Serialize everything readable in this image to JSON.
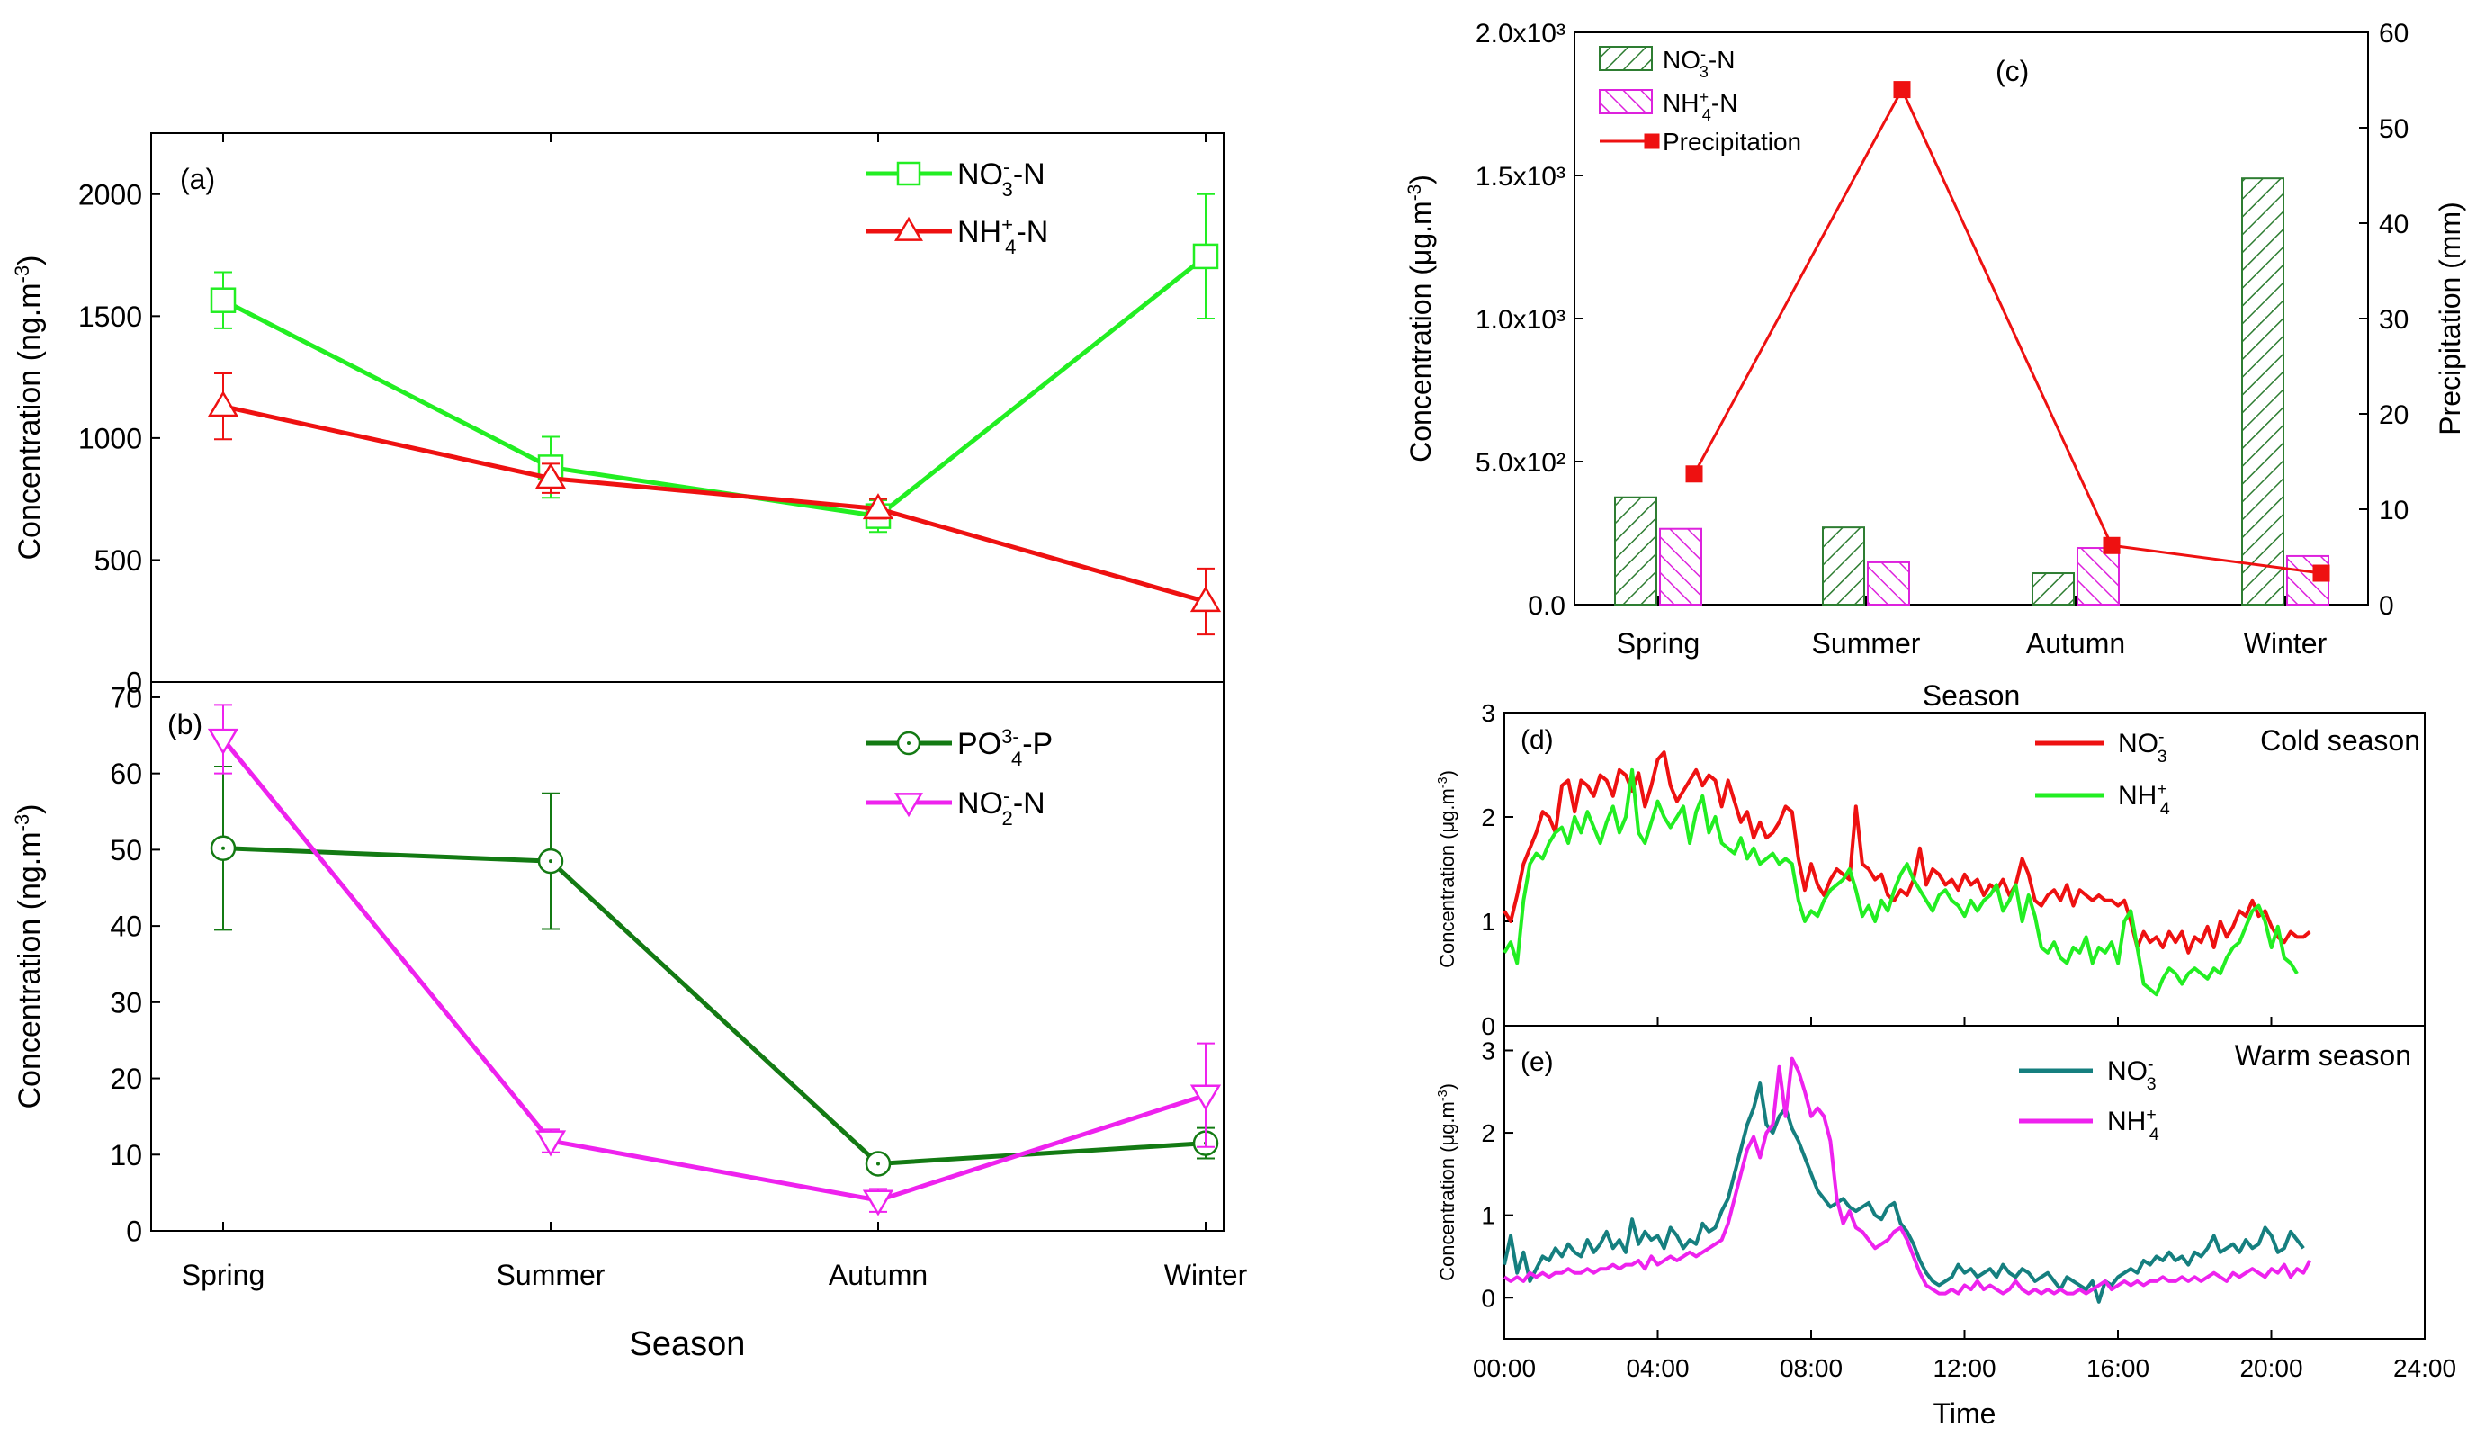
{
  "colors": {
    "no3": "#22ee22",
    "nh4": "#ee1111",
    "po4": "#137a13",
    "no2": "#ee22ee",
    "bar_no3": "#2e7d32",
    "bar_nh4": "#dd22dd",
    "precip": "#ee1111",
    "teal": "#157f7f"
  },
  "chart_data": [
    {
      "id": "a",
      "type": "line",
      "panel_label": "(a)",
      "ylabel": "Concentration (ng.m⁻³)",
      "ylim": [
        0,
        2250
      ],
      "yticks": [
        0,
        500,
        1000,
        1500,
        2000
      ],
      "categories": [
        "Spring",
        "Summer",
        "Autumn",
        "Winter"
      ],
      "series": [
        {
          "name": "NO₃⁻-N",
          "marker": "square",
          "color_key": "no3",
          "values": [
            1565,
            880,
            680,
            1745
          ],
          "err": [
            115,
            125,
            65,
            255
          ]
        },
        {
          "name": "NH₄⁺-N",
          "marker": "triangle-up",
          "color_key": "nh4",
          "values": [
            1130,
            835,
            710,
            330
          ],
          "err": [
            135,
            60,
            40,
            135
          ]
        }
      ],
      "legend": "top-right"
    },
    {
      "id": "b",
      "type": "line",
      "panel_label": "(b)",
      "ylabel": "Concentration (ng.m⁻³)",
      "xlabel": "Season",
      "ylim": [
        0,
        72
      ],
      "yticks": [
        0,
        10,
        20,
        30,
        40,
        50,
        60,
        70
      ],
      "categories": [
        "Spring",
        "Summer",
        "Autumn",
        "Winter"
      ],
      "series": [
        {
          "name": "PO₄³⁻-P",
          "marker": "circle-dot",
          "color_key": "po4",
          "values": [
            50.2,
            48.5,
            8.8,
            11.5
          ],
          "err": [
            10.7,
            8.9,
            1.0,
            2.0
          ]
        },
        {
          "name": "NO₂⁻-N",
          "marker": "triangle-down",
          "color_key": "no2",
          "values": [
            64.5,
            11.8,
            4.0,
            17.8
          ],
          "err": [
            4.5,
            1.5,
            1.5,
            6.8
          ]
        }
      ],
      "legend": "top-right"
    },
    {
      "id": "c",
      "type": "bar",
      "panel_label": "(c)",
      "ylabel": "Concentration (μg.m⁻³)",
      "y2label": "Precipitation (mm)",
      "xlabel": "Season",
      "ylim": [
        0,
        2000
      ],
      "yticks": [
        0,
        500,
        1000,
        1500,
        2000
      ],
      "ytick_labels": [
        "0.0",
        "5.0x10²",
        "1.0x10³",
        "1.5x10³",
        "2.0x10³"
      ],
      "y2lim": [
        0,
        60
      ],
      "y2ticks": [
        0,
        10,
        20,
        30,
        40,
        50,
        60
      ],
      "categories": [
        "Spring",
        "Summer",
        "Autumn",
        "Winter"
      ],
      "series": [
        {
          "name": "NO₃⁻-N",
          "kind": "bar",
          "color_key": "bar_no3",
          "values": [
            375,
            270,
            110,
            1490
          ]
        },
        {
          "name": "NH₄⁺-N",
          "kind": "bar",
          "color_key": "bar_nh4",
          "values": [
            265,
            148,
            198,
            170
          ]
        },
        {
          "name": "Precipitation",
          "kind": "line",
          "axis": "right",
          "marker": "square",
          "color_key": "precip",
          "values": [
            13.7,
            54,
            6.2,
            3.3
          ]
        }
      ],
      "legend": "top-left"
    },
    {
      "id": "d",
      "type": "line",
      "panel_label": "(d)",
      "title": "Cold season",
      "ylabel": "Concentration (μg.m⁻³)",
      "ylim": [
        0,
        3
      ],
      "yticks": [
        0,
        1,
        2,
        3
      ],
      "xlim": [
        0,
        24
      ],
      "series": [
        {
          "name": "NO₃⁻",
          "color_key": "nh4",
          "x_step": 0.1667,
          "values": [
            1.1,
            1.0,
            1.25,
            1.55,
            1.7,
            1.85,
            2.05,
            2.0,
            1.85,
            2.3,
            2.35,
            2.05,
            2.35,
            2.3,
            2.2,
            2.4,
            2.35,
            2.2,
            2.45,
            2.4,
            2.25,
            2.42,
            2.1,
            2.3,
            2.55,
            2.62,
            2.3,
            2.15,
            2.25,
            2.35,
            2.45,
            2.3,
            2.4,
            2.35,
            2.1,
            2.35,
            2.15,
            1.95,
            2.05,
            1.8,
            1.95,
            1.8,
            1.85,
            1.95,
            2.1,
            2.05,
            1.6,
            1.3,
            1.55,
            1.35,
            1.25,
            1.4,
            1.5,
            1.45,
            1.4,
            2.1,
            1.55,
            1.5,
            1.4,
            1.45,
            1.25,
            1.2,
            1.3,
            1.25,
            1.4,
            1.7,
            1.35,
            1.5,
            1.45,
            1.35,
            1.4,
            1.3,
            1.45,
            1.35,
            1.4,
            1.25,
            1.35,
            1.3,
            1.4,
            1.25,
            1.35,
            1.6,
            1.45,
            1.2,
            1.15,
            1.25,
            1.3,
            1.2,
            1.35,
            1.15,
            1.3,
            1.25,
            1.2,
            1.25,
            1.2,
            1.2,
            1.15,
            1.2,
            1.0,
            0.75,
            0.9,
            0.8,
            0.85,
            0.75,
            0.9,
            0.8,
            0.9,
            0.7,
            0.85,
            0.8,
            0.95,
            0.75,
            1.0,
            0.85,
            0.95,
            1.1,
            1.05,
            1.2,
            1.05,
            1.1,
            0.95,
            0.85,
            0.8,
            0.9,
            0.85,
            0.85,
            0.9
          ]
        },
        {
          "name": "NH₄⁺",
          "color_key": "no3",
          "x_step": 0.1667,
          "values": [
            0.7,
            0.8,
            0.6,
            1.2,
            1.55,
            1.65,
            1.6,
            1.75,
            1.85,
            1.9,
            1.75,
            2.0,
            1.85,
            2.05,
            1.9,
            1.75,
            1.95,
            2.1,
            1.85,
            2.0,
            2.45,
            1.85,
            1.75,
            1.95,
            2.15,
            2.0,
            1.9,
            2.0,
            2.1,
            1.75,
            2.05,
            2.2,
            1.85,
            2.0,
            1.75,
            1.7,
            1.65,
            1.8,
            1.6,
            1.7,
            1.55,
            1.6,
            1.65,
            1.55,
            1.6,
            1.55,
            1.2,
            1.0,
            1.1,
            1.05,
            1.2,
            1.3,
            1.35,
            1.4,
            1.5,
            1.3,
            1.05,
            1.15,
            1.0,
            1.2,
            1.1,
            1.3,
            1.45,
            1.55,
            1.4,
            1.3,
            1.2,
            1.1,
            1.25,
            1.3,
            1.2,
            1.15,
            1.05,
            1.2,
            1.1,
            1.2,
            1.25,
            1.35,
            1.1,
            1.2,
            1.35,
            1.0,
            1.25,
            1.05,
            0.75,
            0.7,
            0.8,
            0.65,
            0.6,
            0.75,
            0.7,
            0.85,
            0.6,
            0.75,
            0.7,
            0.8,
            0.6,
            1.0,
            1.1,
            0.75,
            0.4,
            0.35,
            0.3,
            0.45,
            0.55,
            0.5,
            0.4,
            0.5,
            0.55,
            0.5,
            0.45,
            0.55,
            0.5,
            0.65,
            0.75,
            0.8,
            0.95,
            1.1,
            1.15,
            1.0,
            0.75,
            0.95,
            0.65,
            0.6,
            0.5
          ]
        }
      ],
      "legend": "top-right"
    },
    {
      "id": "e",
      "type": "line",
      "panel_label": "(e)",
      "title": "Warm season",
      "ylabel": "Concentration (μg.m⁻³)",
      "xlabel": "Time",
      "ylim": [
        -0.5,
        3.3
      ],
      "yticks": [
        0,
        1,
        2,
        3
      ],
      "xlim": [
        0,
        24
      ],
      "xtick_labels": [
        "00:00",
        "04:00",
        "08:00",
        "12:00",
        "16:00",
        "20:00",
        "24:00"
      ],
      "series": [
        {
          "name": "NO₃⁻",
          "color_key": "teal",
          "x_step": 0.1667,
          "values": [
            0.4,
            0.75,
            0.3,
            0.55,
            0.2,
            0.35,
            0.5,
            0.45,
            0.6,
            0.5,
            0.65,
            0.55,
            0.5,
            0.7,
            0.55,
            0.65,
            0.8,
            0.6,
            0.7,
            0.55,
            0.95,
            0.65,
            0.8,
            0.7,
            0.75,
            0.6,
            0.85,
            0.75,
            0.6,
            0.7,
            0.65,
            0.9,
            0.8,
            0.85,
            1.05,
            1.2,
            1.5,
            1.8,
            2.1,
            2.3,
            2.6,
            2.1,
            2.0,
            2.2,
            2.3,
            2.05,
            1.9,
            1.7,
            1.5,
            1.3,
            1.2,
            1.1,
            1.15,
            1.2,
            1.1,
            1.05,
            1.1,
            1.15,
            1.0,
            0.95,
            1.1,
            1.15,
            0.9,
            0.8,
            0.65,
            0.45,
            0.3,
            0.2,
            0.15,
            0.2,
            0.25,
            0.4,
            0.3,
            0.35,
            0.25,
            0.3,
            0.35,
            0.25,
            0.4,
            0.3,
            0.25,
            0.35,
            0.3,
            0.2,
            0.25,
            0.3,
            0.2,
            0.1,
            0.25,
            0.2,
            0.15,
            0.1,
            0.2,
            -0.05,
            0.2,
            0.15,
            0.25,
            0.3,
            0.35,
            0.3,
            0.45,
            0.4,
            0.5,
            0.45,
            0.55,
            0.45,
            0.5,
            0.4,
            0.55,
            0.5,
            0.6,
            0.75,
            0.55,
            0.6,
            0.65,
            0.55,
            0.7,
            0.6,
            0.65,
            0.85,
            0.75,
            0.55,
            0.6,
            0.8,
            0.7,
            0.6
          ]
        },
        {
          "name": "NH₄⁺",
          "color_key": "no2",
          "x_step": 0.1667,
          "values": [
            0.25,
            0.2,
            0.25,
            0.2,
            0.3,
            0.25,
            0.3,
            0.25,
            0.3,
            0.3,
            0.35,
            0.3,
            0.3,
            0.35,
            0.3,
            0.35,
            0.35,
            0.4,
            0.35,
            0.4,
            0.4,
            0.45,
            0.35,
            0.5,
            0.4,
            0.45,
            0.5,
            0.45,
            0.5,
            0.55,
            0.5,
            0.55,
            0.6,
            0.65,
            0.7,
            0.9,
            1.2,
            1.5,
            1.8,
            1.95,
            1.7,
            2.0,
            2.1,
            2.8,
            2.2,
            2.9,
            2.75,
            2.5,
            2.2,
            2.3,
            2.2,
            1.9,
            1.2,
            0.9,
            1.05,
            0.85,
            0.8,
            0.7,
            0.6,
            0.65,
            0.7,
            0.8,
            0.85,
            0.7,
            0.5,
            0.3,
            0.15,
            0.1,
            0.05,
            0.05,
            0.1,
            0.05,
            0.15,
            0.1,
            0.2,
            0.1,
            0.15,
            0.1,
            0.05,
            0.1,
            0.2,
            0.1,
            0.05,
            0.1,
            0.05,
            0.1,
            0.05,
            0.1,
            0.05,
            0.05,
            0.1,
            0.05,
            0.1,
            0.15,
            0.2,
            0.1,
            0.15,
            0.2,
            0.15,
            0.2,
            0.15,
            0.2,
            0.2,
            0.25,
            0.2,
            0.2,
            0.25,
            0.2,
            0.25,
            0.2,
            0.25,
            0.3,
            0.25,
            0.2,
            0.3,
            0.25,
            0.3,
            0.35,
            0.3,
            0.25,
            0.35,
            0.3,
            0.4,
            0.25,
            0.35,
            0.3,
            0.45
          ]
        }
      ],
      "legend": "top-right"
    }
  ]
}
